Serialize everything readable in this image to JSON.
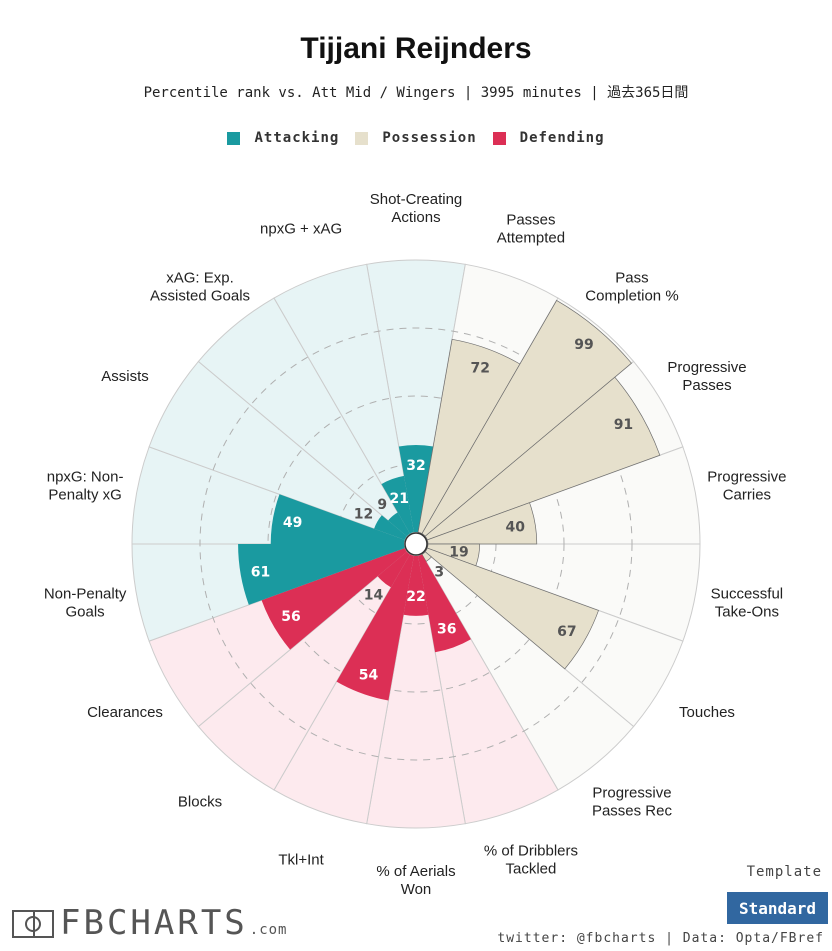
{
  "title": "Tijjani Reijnders",
  "subtitle": "Percentile rank vs. Att Mid / Wingers | 3995 minutes | 過去365日間",
  "legend": [
    {
      "label": "Attacking",
      "color": "#1a9aa0"
    },
    {
      "label": "Possession",
      "color": "#e6e0cc"
    },
    {
      "label": "Defending",
      "color": "#dc2f55"
    }
  ],
  "chart_data": {
    "type": "polar-bar",
    "rmax": 100,
    "grid": [
      25,
      50,
      75
    ],
    "categories": [
      {
        "label": "Shot-Creating Actions",
        "group": "Attacking",
        "value": 32
      },
      {
        "label": "Passes Attempted",
        "group": "Possession",
        "value": 72
      },
      {
        "label": "Pass Completion %",
        "group": "Possession",
        "value": 99
      },
      {
        "label": "Progressive Passes",
        "group": "Possession",
        "value": 91
      },
      {
        "label": "Progressive Carries",
        "group": "Possession",
        "value": 40
      },
      {
        "label": "Successful Take-Ons",
        "group": "Possession",
        "value": 19
      },
      {
        "label": "Touches",
        "group": "Possession",
        "value": 67
      },
      {
        "label": "Progressive Passes Rec",
        "group": "Possession",
        "value": 3
      },
      {
        "label": "% of Dribblers Tackled",
        "group": "Defending",
        "value": 36
      },
      {
        "label": "% of Aerials Won",
        "group": "Defending",
        "value": 22
      },
      {
        "label": "Tkl+Int",
        "group": "Defending",
        "value": 54
      },
      {
        "label": "Blocks",
        "group": "Defending",
        "value": 14
      },
      {
        "label": "Clearances",
        "group": "Defending",
        "value": 56
      },
      {
        "label": "Non-Penalty Goals",
        "group": "Attacking",
        "value": 61
      },
      {
        "label": "npxG: Non-Penalty xG",
        "group": "Attacking",
        "value": 49
      },
      {
        "label": "Assists",
        "group": "Attacking",
        "value": 12
      },
      {
        "label": "xAG: Exp. Assisted Goals",
        "group": "Attacking",
        "value": 9
      },
      {
        "label": "npxG + xAG",
        "group": "Attacking",
        "value": 21
      }
    ],
    "colors": {
      "Attacking": {
        "bar": "#1a9aa0",
        "bg": "#e7f4f5",
        "text": "#555555"
      },
      "Possession": {
        "bar": "#e6e0cc",
        "bg": "#fafaf8",
        "text": "#555555"
      },
      "Defending": {
        "bar": "#dc2f55",
        "bg": "#fdeaee",
        "text": "#555555"
      }
    }
  },
  "footer": {
    "template_label": "Template",
    "template_value": "Standard",
    "credit": "twitter: @fbcharts | Data: Opta/FBref",
    "logo_text": "FBCHARTS",
    "logo_suffix": ".com"
  }
}
